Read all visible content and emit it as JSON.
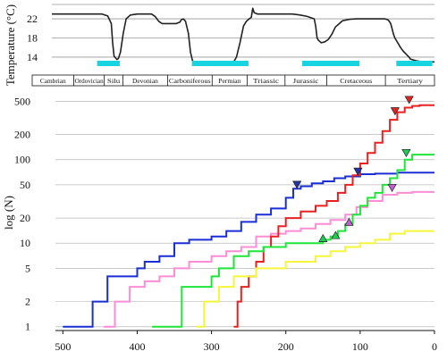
{
  "chart_data": [
    {
      "type": "line",
      "ylabel": "Temperature (°C)",
      "y_ticks": [
        14,
        18,
        22
      ],
      "ylim": [
        11,
        25
      ],
      "xlim": [
        541,
        0
      ],
      "x_reversed": true,
      "grid": "horizontal",
      "series": [
        {
          "color": "#222222",
          "x": [
            541,
            500,
            470,
            462,
            457,
            455,
            453,
            449,
            447,
            444,
            440,
            436,
            430,
            420,
            410,
            400,
            395,
            390,
            385,
            375,
            365,
            360,
            358,
            355,
            352,
            348,
            345,
            342,
            338,
            330,
            320,
            310,
            300,
            290,
            285,
            280,
            275,
            270,
            266,
            262,
            259,
            257,
            255,
            252,
            250,
            240,
            220,
            201,
            190,
            180,
            170,
            168,
            166,
            164,
            160,
            155,
            150,
            145,
            140,
            130,
            120,
            110,
            100,
            90,
            80,
            70,
            66,
            64,
            62,
            60,
            58,
            56,
            52,
            48,
            44,
            40,
            36,
            34,
            30,
            25,
            20,
            15,
            10,
            5,
            0
          ],
          "values": [
            23,
            23,
            23,
            22.6,
            21,
            17,
            14.2,
            13.5,
            13.7,
            15,
            19,
            22,
            22.8,
            23,
            23,
            23,
            22.5,
            21.5,
            21,
            21,
            21,
            21.3,
            21.8,
            22,
            21.5,
            19,
            15,
            13.2,
            13,
            12.7,
            12.5,
            12.5,
            12.5,
            12.5,
            12.7,
            14,
            17,
            20.5,
            21.5,
            22,
            22.3,
            24.2,
            23.3,
            23.1,
            23,
            23,
            23,
            23,
            22.8,
            22.5,
            22,
            20.5,
            18,
            17.5,
            17,
            17.2,
            17.7,
            18.8,
            20.3,
            21.6,
            21.9,
            22,
            22,
            22,
            22,
            22,
            21.8,
            21.5,
            21,
            20,
            18.8,
            18,
            17,
            16,
            15.2,
            14.6,
            14,
            13.6,
            13.4,
            13.2,
            13.1,
            13.1,
            13,
            13,
            13
          ]
        }
      ],
      "cold_intervals": [
        [
          477,
          445
        ],
        [
          343,
          263
        ],
        [
          187,
          106
        ],
        [
          54,
          3
        ]
      ],
      "cold_interval_color": "#18d4e0"
    },
    {
      "type": "table",
      "periods": [
        {
          "name": "Cambrian",
          "start": 541,
          "end": 485
        },
        {
          "name": "Ordovician",
          "start": 485,
          "end": 444
        },
        {
          "name": "Silu",
          "start": 444,
          "end": 419
        },
        {
          "name": "Devonian",
          "start": 419,
          "end": 359
        },
        {
          "name": "Carboniferous",
          "start": 359,
          "end": 299
        },
        {
          "name": "Permian",
          "start": 299,
          "end": 252
        },
        {
          "name": "Triassic",
          "start": 252,
          "end": 201
        },
        {
          "name": "Jurassic",
          "start": 201,
          "end": 145
        },
        {
          "name": "Cretaceous",
          "start": 145,
          "end": 66
        },
        {
          "name": "Tertiary",
          "start": 66,
          "end": 0
        }
      ]
    },
    {
      "type": "line",
      "ylabel": "log (N)",
      "yscale": "log",
      "y_ticks": [
        1,
        2,
        5,
        10,
        20,
        50,
        100,
        200,
        500
      ],
      "x_ticks": [
        500,
        400,
        300,
        200,
        100,
        0
      ],
      "ylim": [
        0.9,
        600
      ],
      "xlim": [
        510,
        0
      ],
      "x_reversed": true,
      "grid": "horizontal",
      "series": [
        {
          "color": "#1a2fd6",
          "x": [
            500,
            460,
            440,
            400,
            390,
            370,
            350,
            330,
            300,
            280,
            260,
            240,
            220,
            200,
            190,
            180,
            165,
            150,
            135,
            120,
            100,
            80,
            50,
            20,
            0
          ],
          "values": [
            1,
            2,
            4,
            5,
            6,
            7,
            10,
            11,
            12,
            14,
            18,
            22,
            26,
            35,
            45,
            48,
            52,
            55,
            60,
            63,
            67,
            68,
            70,
            70,
            70
          ]
        },
        {
          "color": "#ff8cd6",
          "x": [
            445,
            430,
            410,
            390,
            370,
            350,
            330,
            300,
            280,
            260,
            240,
            220,
            200,
            180,
            160,
            140,
            120,
            105,
            90,
            70,
            50,
            30,
            0
          ],
          "values": [
            1,
            2,
            3,
            3.5,
            4,
            5,
            6,
            7,
            8,
            9,
            12,
            13,
            14,
            15,
            17,
            19,
            22,
            27,
            32,
            38,
            40,
            41,
            41
          ]
        },
        {
          "color": "#e82020",
          "x": [
            270,
            265,
            260,
            250,
            240,
            230,
            220,
            210,
            200,
            180,
            160,
            145,
            130,
            120,
            110,
            100,
            90,
            80,
            70,
            60,
            50,
            40,
            30,
            20,
            10,
            0
          ],
          "values": [
            1,
            2,
            3,
            4,
            6,
            9,
            12,
            16,
            20,
            24,
            28,
            32,
            40,
            50,
            65,
            90,
            120,
            160,
            220,
            300,
            370,
            420,
            440,
            450,
            450,
            450
          ]
        },
        {
          "color": "#1ee639",
          "x": [
            380,
            340,
            330,
            300,
            290,
            270,
            250,
            230,
            200,
            180,
            160,
            150,
            140,
            130,
            120,
            110,
            100,
            90,
            80,
            70,
            60,
            50,
            40,
            30,
            20,
            0
          ],
          "values": [
            1,
            3,
            3,
            4,
            5,
            7,
            8,
            9,
            10,
            10,
            10,
            11,
            12,
            14,
            17,
            22,
            28,
            35,
            40,
            50,
            60,
            75,
            100,
            115,
            115,
            115
          ]
        },
        {
          "color": "#f5f53a",
          "x": [
            320,
            310,
            300,
            290,
            280,
            270,
            260,
            240,
            220,
            200,
            180,
            160,
            140,
            120,
            100,
            80,
            60,
            40,
            20,
            0
          ],
          "values": [
            1,
            2,
            2,
            3,
            3,
            4,
            4,
            5,
            5,
            6,
            6,
            7,
            8,
            9,
            10,
            11,
            13,
            14,
            14,
            14
          ]
        }
      ],
      "markers": [
        {
          "x": 185,
          "y": 50,
          "shape": "triangle-down",
          "color": "#2233a8"
        },
        {
          "x": 103,
          "y": 72,
          "shape": "triangle-down",
          "color": "#2233a8"
        },
        {
          "x": 53,
          "y": 380,
          "shape": "triangle-down",
          "color": "#e02424"
        },
        {
          "x": 34,
          "y": 520,
          "shape": "triangle-down",
          "color": "#e02424"
        },
        {
          "x": 38,
          "y": 120,
          "shape": "triangle-down",
          "color": "#20cc55"
        },
        {
          "x": 150,
          "y": 11.5,
          "shape": "triangle-up",
          "color": "#20cc55"
        },
        {
          "x": 133,
          "y": 12.5,
          "shape": "triangle-up",
          "color": "#20cc55"
        },
        {
          "x": 115,
          "y": 18,
          "shape": "triangle-up",
          "color": "#c060d0"
        },
        {
          "x": 57,
          "y": 46,
          "shape": "triangle-down",
          "color": "#c060d0"
        }
      ]
    }
  ]
}
